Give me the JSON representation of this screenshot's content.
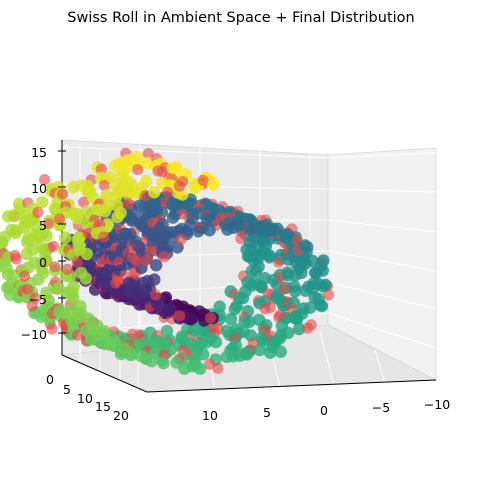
{
  "chart_data": {
    "type": "scatter",
    "title": "Swiss Roll in Ambient Space + Final Distribution",
    "xlabel": "",
    "ylabel": "",
    "zlabel": "",
    "projection": "3d",
    "grid": true,
    "legend": "none",
    "xlim": [
      -12,
      14
    ],
    "ylim": [
      0,
      22
    ],
    "zlim": [
      -12,
      16
    ],
    "x_ticks": [
      "10",
      "5",
      "0",
      "−5",
      "−10"
    ],
    "y_ticks": [
      "0",
      "5",
      "10",
      "15",
      "20"
    ],
    "z_ticks": [
      "15",
      "10",
      "5",
      "0",
      "−5",
      "−10"
    ],
    "colormap": "viridis",
    "series": [
      {
        "kind": "swiss-roll-ambient",
        "color_by": "roll parameter t (viridis)",
        "t_range": [
          4.7,
          14.1
        ],
        "height_range": [
          0,
          21
        ],
        "points": 900
      },
      {
        "kind": "final-distribution",
        "color": "#e8474a",
        "points": 260
      }
    ]
  }
}
